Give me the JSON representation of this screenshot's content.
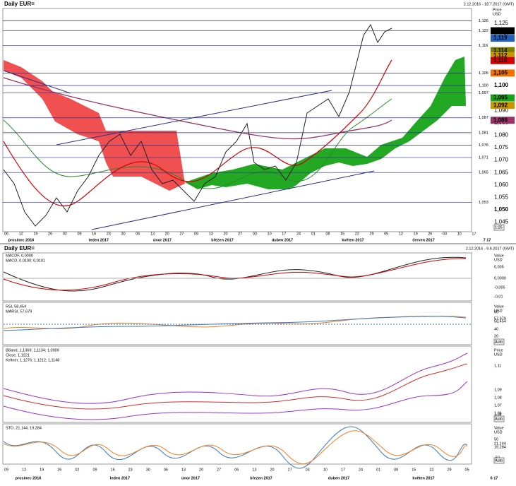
{
  "main": {
    "title": "Daily EUR=",
    "range": "2.12.2016 - 18.7.2017 (GMT)",
    "unit": [
      "Price",
      "USD"
    ],
    "levels": [
      {
        "value": 1.126,
        "label": "1,126"
      },
      {
        "value": 1.122,
        "label": "1,122"
      },
      {
        "value": 1.116,
        "label": "1,116"
      },
      {
        "value": 1.105,
        "label": "1,105"
      },
      {
        "value": 1.1,
        "label": "1,100"
      },
      {
        "value": 1.097,
        "label": "1,097"
      },
      {
        "value": 1.087,
        "label": "1,087"
      },
      {
        "value": 1.081,
        "label": "1,081"
      },
      {
        "value": 1.076,
        "label": "1,076"
      },
      {
        "value": 1.071,
        "label": "1,071"
      },
      {
        "value": 1.065,
        "label": "1,065"
      },
      {
        "value": 1.053,
        "label": "1,053"
      }
    ],
    "ticks": [
      {
        "value": 1.125,
        "label": "1,125"
      },
      {
        "value": 1.12,
        "label": "1,120"
      },
      {
        "value": 1.1,
        "label": "1,100",
        "bold": true
      },
      {
        "value": 1.09,
        "label": "1,090"
      },
      {
        "value": 1.085,
        "label": "1,085"
      },
      {
        "value": 1.08,
        "label": "1,080"
      },
      {
        "value": 1.075,
        "label": "1,075"
      },
      {
        "value": 1.07,
        "label": "1,070"
      },
      {
        "value": 1.065,
        "label": "1,065"
      },
      {
        "value": 1.06,
        "label": "1,060"
      },
      {
        "value": 1.055,
        "label": "1,055"
      },
      {
        "value": 1.05,
        "label": "1,050",
        "bold": true
      },
      {
        "value": 1.045,
        "label": "1,045"
      }
    ],
    "tags": [
      {
        "value": 1.122,
        "label": "1,122",
        "color": "#000000"
      },
      {
        "value": 1.119,
        "label": "1,119",
        "color": "#1f5fbf"
      },
      {
        "value": 1.114,
        "label": "1,114",
        "color": "#7f7f00"
      },
      {
        "value": 1.112,
        "label": "1,112",
        "color": "#c89600"
      },
      {
        "value": 1.11,
        "label": "1,110",
        "color": "#d40000"
      },
      {
        "value": 1.105,
        "label": "1,105",
        "color": "#f07000"
      },
      {
        "value": 1.095,
        "label": "1,095",
        "color": "#1aa01a"
      },
      {
        "value": 1.092,
        "label": "1,092",
        "color": "#c89600"
      },
      {
        "value": 1.086,
        "label": "1,086",
        "color": "#993366"
      }
    ],
    "scale_button": "1:25",
    "days": [
      "06",
      "12",
      "19",
      "26",
      "02",
      "09",
      "16",
      "23",
      "30",
      "06",
      "13",
      "20",
      "27",
      "06",
      "13",
      "20",
      "27",
      "03",
      "10",
      "17",
      "24",
      "01",
      "08",
      "15",
      "22",
      "29",
      "05",
      "12",
      "19",
      "26",
      "03",
      "10",
      "17"
    ],
    "months": [
      "prosinec 2016",
      "leden 2017",
      "únor 2017",
      "březen 2017",
      "duben 2017",
      "květen 2017",
      "červen 2017",
      "7 17"
    ]
  },
  "macd": {
    "title": "Daily EUR=",
    "range": "2.12.2016 - 9.6.2017 (GMT)",
    "legend": [
      "MACDF, 0,0000",
      "MACD, 0,0100; 0,0101"
    ],
    "unit": [
      "Value",
      "USD"
    ],
    "axis": [
      "0,005",
      "0,0000",
      "-0,005",
      "-0,01"
    ]
  },
  "rsi": {
    "legend": [
      "RSI, 58,454",
      "MARSI, 57,679"
    ],
    "unit": [
      "Value",
      "USD"
    ],
    "axis": [
      "60",
      "57,679",
      "58,454",
      "40",
      "20"
    ],
    "button": "Auto"
  },
  "bband": {
    "legend": [
      "BBand, 1,1369; 1,1134; 1,0909",
      "Close, 1,1221",
      "Keltner, 1,1276; 1,1212; 1,1148"
    ],
    "unit": [
      "Price",
      "USD"
    ],
    "axis": [
      "1,11",
      "1,09",
      "1,08",
      "1,07",
      "1,06",
      "1,05",
      "1,04"
    ],
    "button": "Auto"
  },
  "sto": {
    "legend": [
      "STO, 21,144; 19,284"
    ],
    "unit": [
      "Value",
      "USD"
    ],
    "axis": [
      "50",
      "21,144",
      "19,284",
      "-50"
    ],
    "button": "Auto"
  },
  "bottom": {
    "days": [
      "09",
      "12",
      "19",
      "26",
      "02",
      "09",
      "16",
      "23",
      "30",
      "06",
      "13",
      "20",
      "27",
      "06",
      "13",
      "20",
      "27",
      "03",
      "10",
      "17",
      "24",
      "01",
      "08",
      "15",
      "22",
      "29",
      "05"
    ],
    "months": [
      "prosinec 2016",
      "leden 2017",
      "únor 2017",
      "březen 2017",
      "duben 2017",
      "květen 2017",
      "6 17"
    ]
  }
}
